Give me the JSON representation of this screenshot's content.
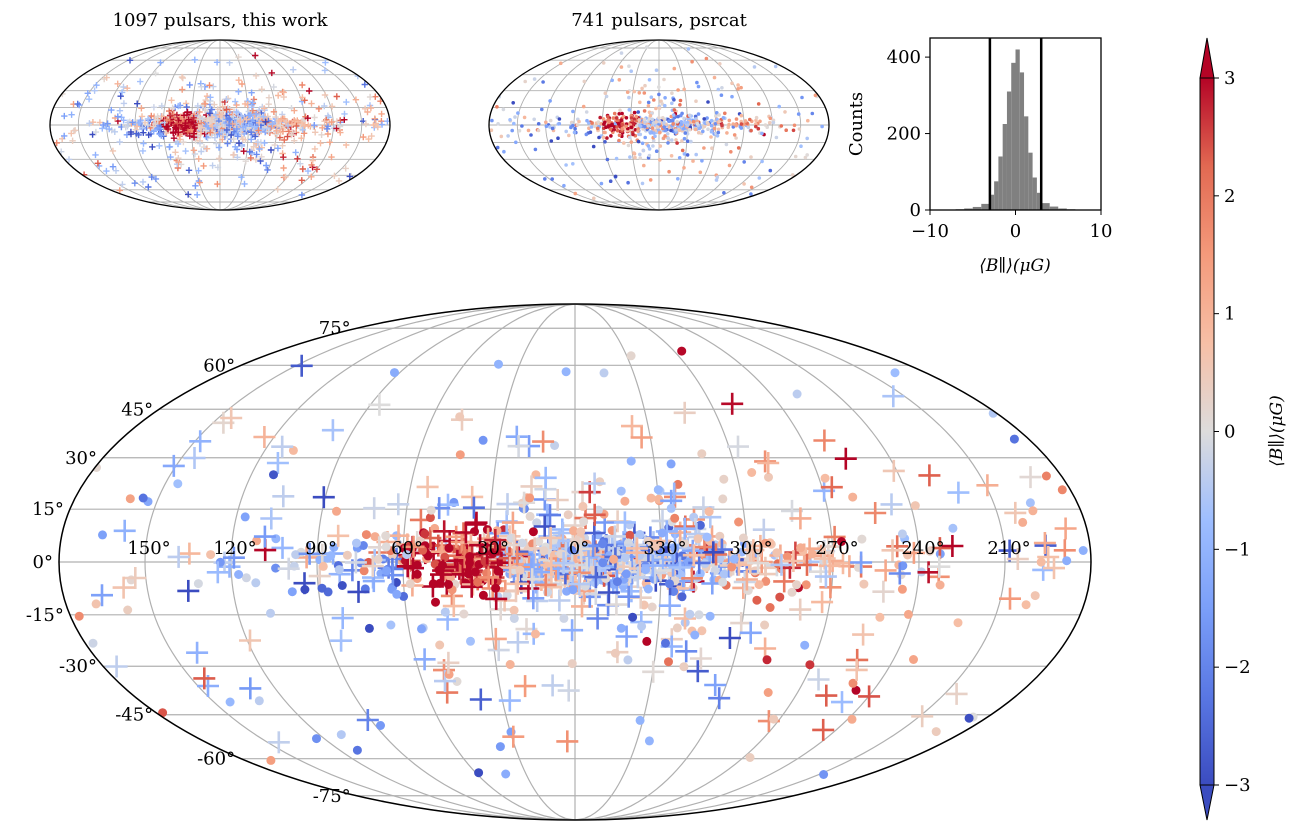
{
  "chart_data": [
    {
      "type": "scatter",
      "projection": "mollweide",
      "title": "1097 pulsars, this work",
      "n_points": 1097,
      "marker_set": [
        "plus",
        "dot"
      ],
      "notes_visible": "Galactic-plane concentration; strong positive values near longitude 30-60 deg; negative values near longitude 60-90 deg below plane"
    },
    {
      "type": "scatter",
      "projection": "mollweide",
      "title": "741 pulsars, psrcat",
      "n_points": 741,
      "marker_set": [
        "dot"
      ]
    },
    {
      "type": "bar",
      "subtype": "histogram",
      "xlabel": "⟨B∥⟩(μG)",
      "ylabel": "Counts",
      "xlim": [
        -10,
        10
      ],
      "ylim": [
        0,
        450
      ],
      "xticks": [
        "−10",
        "0",
        "10"
      ],
      "yticks": [
        "0",
        "200",
        "400"
      ],
      "bin_centers": [
        -6.5,
        -5.5,
        -4.5,
        -3.5,
        -2.75,
        -2.25,
        -1.75,
        -1.25,
        -0.75,
        -0.25,
        0.25,
        0.75,
        1.25,
        1.75,
        2.25,
        2.75,
        3.5,
        4.5,
        5.5,
        6.5
      ],
      "counts": [
        2,
        4,
        8,
        16,
        40,
        75,
        140,
        225,
        310,
        385,
        420,
        360,
        245,
        150,
        85,
        45,
        18,
        9,
        4,
        2
      ],
      "vlines": [
        -3,
        3
      ],
      "bar_color": "#808080"
    },
    {
      "type": "scatter",
      "projection": "mollweide",
      "title": "",
      "lon_labels": [
        "150°",
        "120°",
        "90°",
        "60°",
        "30°",
        "0°",
        "330°",
        "300°",
        "270°",
        "240°",
        "210°"
      ],
      "lat_labels": [
        "75°",
        "60°",
        "45°",
        "30°",
        "15°",
        "0°",
        "-15°",
        "-30°",
        "-45°",
        "-60°",
        "-75°"
      ],
      "marker_legend_implicit": {
        "plus": "this work",
        "dot": "psrcat"
      },
      "grid": true
    }
  ],
  "colorbar": {
    "label": "⟨B∥⟩(μG)",
    "vmin": -3,
    "vmax": 3,
    "ticks": [
      "−3",
      "−2",
      "−1",
      "0",
      "1",
      "2",
      "3"
    ],
    "cmap": "coolwarm",
    "extend": "both",
    "colors": {
      "low": "#3b4cc0",
      "mid": "#dddddd",
      "high": "#b40426"
    }
  }
}
